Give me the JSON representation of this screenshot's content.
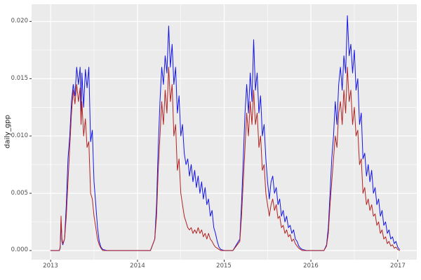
{
  "figure": {
    "y_axis_title": "daily_gpp",
    "x_tick_labels": [
      "2013",
      "2014",
      "2015",
      "2016",
      "2017"
    ],
    "y_tick_labels": [
      "0.000",
      "0.005",
      "0.010",
      "0.015",
      "0.020"
    ]
  },
  "chart_data": {
    "type": "line",
    "title": "",
    "xlabel": "",
    "ylabel": "daily_gpp",
    "xlim": [
      2012.78,
      2017.22
    ],
    "ylim": [
      -0.0008,
      0.0215
    ],
    "grid": true,
    "legend": "none",
    "x_major_ticks": [
      2013,
      2014,
      2015,
      2016,
      2017
    ],
    "x_minor_ticks": [
      2013.5,
      2014.5,
      2015.5,
      2016.5
    ],
    "y_major_ticks": [
      0,
      0.005,
      0.01,
      0.015,
      0.02
    ],
    "y_minor_ticks": [
      0.0025,
      0.0075,
      0.0125,
      0.0175
    ],
    "theme": {
      "panel_bg": "#EBEBEB",
      "grid_color": "#FFFFFF",
      "tick_color": "#333333",
      "tick_label_color": "#4D4D4D",
      "plot_bg": "#FFFFFF"
    },
    "x": [
      2013.0,
      2013.05,
      2013.1,
      2013.11,
      2013.12,
      2013.13,
      2013.14,
      2013.16,
      2013.18,
      2013.2,
      2013.22,
      2013.24,
      2013.26,
      2013.28,
      2013.3,
      2013.32,
      2013.34,
      2013.35,
      2013.36,
      2013.38,
      2013.4,
      2013.42,
      2013.44,
      2013.46,
      2013.48,
      2013.5,
      2013.52,
      2013.54,
      2013.56,
      2013.58,
      2013.6,
      2013.65,
      2013.75,
      2013.85,
      2013.95,
      2014.05,
      2014.15,
      2014.2,
      2014.22,
      2014.24,
      2014.26,
      2014.28,
      2014.3,
      2014.32,
      2014.34,
      2014.36,
      2014.38,
      2014.4,
      2014.42,
      2014.44,
      2014.46,
      2014.48,
      2014.5,
      2014.52,
      2014.54,
      2014.56,
      2014.58,
      2014.6,
      2014.62,
      2014.64,
      2014.66,
      2014.68,
      2014.7,
      2014.72,
      2014.74,
      2014.76,
      2014.78,
      2014.8,
      2014.82,
      2014.84,
      2014.86,
      2014.88,
      2014.9,
      2014.92,
      2014.94,
      2014.96,
      2015.0,
      2015.1,
      2015.18,
      2015.2,
      2015.22,
      2015.24,
      2015.26,
      2015.28,
      2015.3,
      2015.32,
      2015.34,
      2015.36,
      2015.38,
      2015.4,
      2015.42,
      2015.44,
      2015.46,
      2015.48,
      2015.5,
      2015.52,
      2015.54,
      2015.56,
      2015.58,
      2015.6,
      2015.62,
      2015.64,
      2015.66,
      2015.68,
      2015.7,
      2015.72,
      2015.74,
      2015.76,
      2015.78,
      2015.8,
      2015.82,
      2015.84,
      2015.86,
      2015.88,
      2015.9,
      2015.95,
      2016.05,
      2016.15,
      2016.18,
      2016.2,
      2016.22,
      2016.24,
      2016.26,
      2016.28,
      2016.3,
      2016.32,
      2016.34,
      2016.36,
      2016.38,
      2016.4,
      2016.42,
      2016.44,
      2016.46,
      2016.48,
      2016.5,
      2016.52,
      2016.54,
      2016.56,
      2016.58,
      2016.6,
      2016.62,
      2016.64,
      2016.66,
      2016.68,
      2016.7,
      2016.72,
      2016.74,
      2016.76,
      2016.78,
      2016.8,
      2016.82,
      2016.84,
      2016.86,
      2016.88,
      2016.9,
      2016.92,
      2016.94,
      2016.96,
      2016.98,
      2017.0,
      2017.02
    ],
    "series": [
      {
        "name": "blue-series",
        "color": "#1414E6",
        "values": [
          0,
          0,
          0,
          0.0002,
          0.0025,
          0.0008,
          0.0005,
          0.001,
          0.004,
          0.008,
          0.01,
          0.013,
          0.0145,
          0.0135,
          0.016,
          0.0145,
          0.016,
          0.012,
          0.0155,
          0.0125,
          0.0158,
          0.0142,
          0.016,
          0.0095,
          0.0105,
          0.006,
          0.004,
          0.002,
          0.0008,
          0.0003,
          0.0001,
          0,
          0,
          0,
          0,
          0,
          0,
          0.001,
          0.004,
          0.009,
          0.013,
          0.016,
          0.0145,
          0.017,
          0.0155,
          0.0196,
          0.016,
          0.018,
          0.0145,
          0.016,
          0.012,
          0.0135,
          0.01,
          0.011,
          0.0085,
          0.0075,
          0.008,
          0.0065,
          0.0075,
          0.006,
          0.007,
          0.0055,
          0.0065,
          0.005,
          0.006,
          0.0045,
          0.0055,
          0.004,
          0.0045,
          0.003,
          0.0035,
          0.002,
          0.0015,
          0.0008,
          0.0003,
          0.0001,
          0,
          0,
          0.001,
          0.004,
          0.008,
          0.012,
          0.0145,
          0.012,
          0.0155,
          0.013,
          0.0184,
          0.014,
          0.0155,
          0.012,
          0.0135,
          0.01,
          0.011,
          0.008,
          0.006,
          0.0045,
          0.006,
          0.0065,
          0.005,
          0.0055,
          0.004,
          0.0045,
          0.003,
          0.0035,
          0.0025,
          0.003,
          0.002,
          0.0022,
          0.0015,
          0.0018,
          0.001,
          0.0008,
          0.0004,
          0.0002,
          0.0001,
          0,
          0,
          0,
          0.0005,
          0.002,
          0.005,
          0.008,
          0.01,
          0.013,
          0.011,
          0.0145,
          0.016,
          0.014,
          0.017,
          0.0155,
          0.0205,
          0.017,
          0.018,
          0.0155,
          0.0175,
          0.014,
          0.015,
          0.011,
          0.012,
          0.008,
          0.0085,
          0.0065,
          0.0075,
          0.006,
          0.007,
          0.005,
          0.0055,
          0.004,
          0.0045,
          0.003,
          0.0035,
          0.0022,
          0.0025,
          0.0015,
          0.0018,
          0.001,
          0.0012,
          0.0006,
          0.0008,
          0.0003,
          0.0001
        ]
      },
      {
        "name": "red-series",
        "color": "#B22222",
        "values": [
          0,
          0,
          0,
          0.0003,
          0.003,
          0.001,
          0.0006,
          0.001,
          0.003,
          0.006,
          0.009,
          0.012,
          0.014,
          0.0128,
          0.0145,
          0.013,
          0.0142,
          0.011,
          0.013,
          0.01,
          0.0115,
          0.009,
          0.0095,
          0.005,
          0.0045,
          0.003,
          0.002,
          0.001,
          0.0005,
          0.0002,
          0,
          0,
          0,
          0,
          0,
          0,
          0,
          0.001,
          0.003,
          0.007,
          0.01,
          0.013,
          0.011,
          0.014,
          0.012,
          0.016,
          0.013,
          0.0145,
          0.01,
          0.011,
          0.007,
          0.008,
          0.005,
          0.004,
          0.003,
          0.0025,
          0.002,
          0.0018,
          0.002,
          0.0015,
          0.0018,
          0.0015,
          0.002,
          0.0015,
          0.0018,
          0.0012,
          0.0015,
          0.001,
          0.0015,
          0.001,
          0.0008,
          0.0005,
          0.0003,
          0.0002,
          0.0001,
          0,
          0,
          0,
          0.0008,
          0.003,
          0.006,
          0.009,
          0.012,
          0.01,
          0.013,
          0.011,
          0.014,
          0.011,
          0.012,
          0.009,
          0.01,
          0.007,
          0.0075,
          0.005,
          0.004,
          0.003,
          0.004,
          0.0045,
          0.0035,
          0.004,
          0.0028,
          0.003,
          0.002,
          0.0022,
          0.0015,
          0.0018,
          0.0012,
          0.0014,
          0.0008,
          0.001,
          0.0006,
          0.0004,
          0.0002,
          0.0001,
          0,
          0,
          0,
          0,
          0.0004,
          0.0015,
          0.004,
          0.006,
          0.008,
          0.01,
          0.009,
          0.012,
          0.013,
          0.011,
          0.014,
          0.012,
          0.016,
          0.013,
          0.014,
          0.011,
          0.0125,
          0.01,
          0.0105,
          0.0075,
          0.008,
          0.005,
          0.0055,
          0.004,
          0.0045,
          0.0035,
          0.004,
          0.003,
          0.0032,
          0.0022,
          0.0025,
          0.0015,
          0.0018,
          0.001,
          0.0012,
          0.0006,
          0.0008,
          0.0004,
          0.0005,
          0.0002,
          0.0003,
          0.0001,
          0
        ]
      }
    ]
  }
}
